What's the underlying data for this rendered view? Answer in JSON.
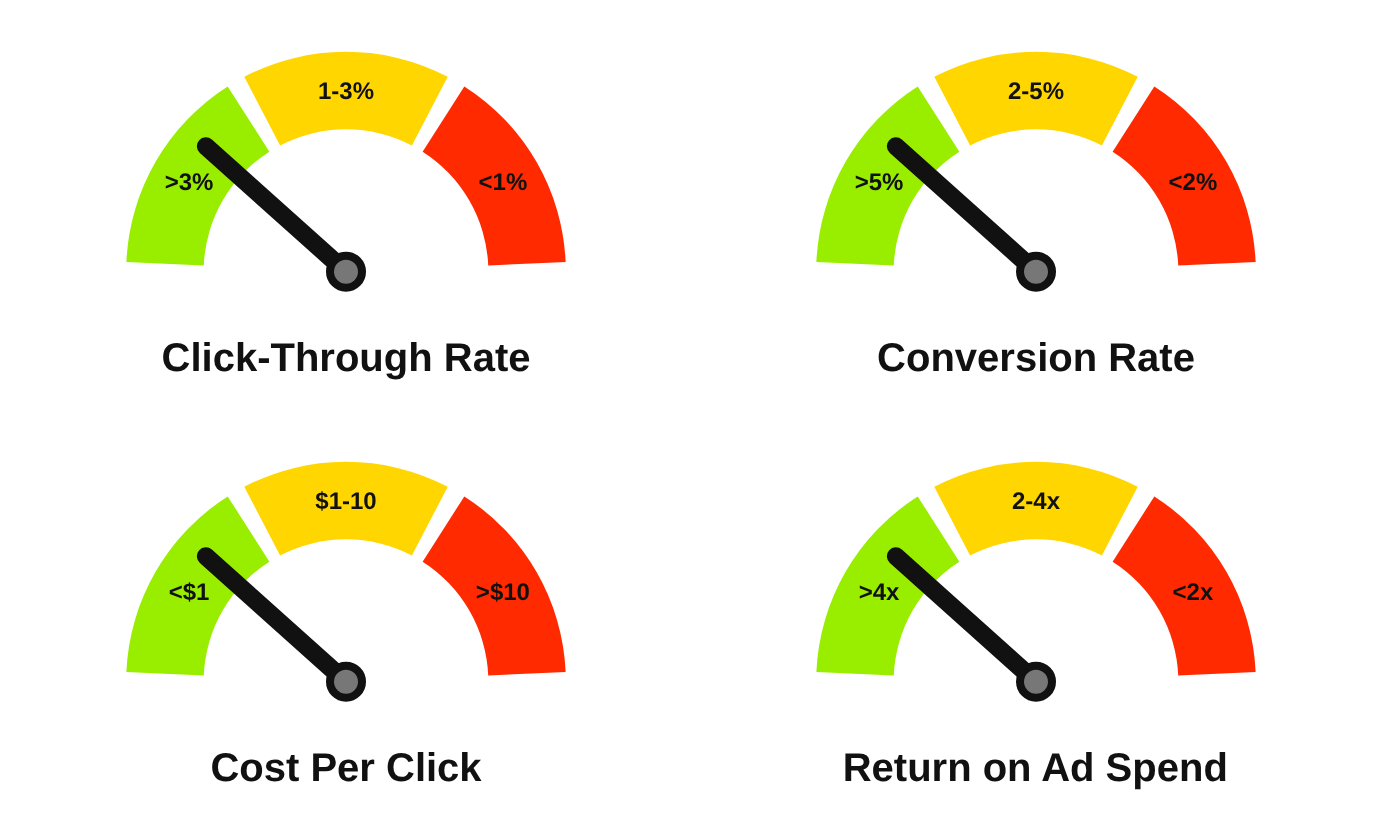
{
  "chart_data": [
    {
      "type": "donut",
      "title": "Click-Through Rate",
      "categories": [
        ">3%",
        "1-3%",
        "<1%"
      ],
      "values": [
        33.3,
        33.4,
        33.3
      ],
      "colors": [
        "#99ee00",
        "#ffd600",
        "#ff2a00"
      ],
      "needle": ">3%"
    },
    {
      "type": "donut",
      "title": "Conversion Rate",
      "categories": [
        ">5%",
        "2-5%",
        "<2%"
      ],
      "values": [
        33.3,
        33.4,
        33.3
      ],
      "colors": [
        "#99ee00",
        "#ffd600",
        "#ff2a00"
      ],
      "needle": ">5%"
    },
    {
      "type": "donut",
      "title": "Cost Per Click",
      "categories": [
        "<$1",
        "$1-10",
        ">$10"
      ],
      "values": [
        33.3,
        33.4,
        33.3
      ],
      "colors": [
        "#99ee00",
        "#ffd600",
        "#ff2a00"
      ],
      "needle": "<$1"
    },
    {
      "type": "donut",
      "title": "Return on Ad Spend",
      "categories": [
        ">4x",
        "2-4x",
        "<2x"
      ],
      "values": [
        33.3,
        33.4,
        33.3
      ],
      "colors": [
        "#99ee00",
        "#ffd600",
        "#ff2a00"
      ],
      "needle": ">4x"
    }
  ]
}
